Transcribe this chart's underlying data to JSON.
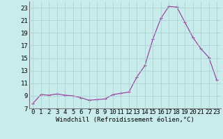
{
  "xlabel": "Windchill (Refroidissement éolien,°C)",
  "hours": [
    0,
    1,
    2,
    3,
    4,
    5,
    6,
    7,
    8,
    9,
    10,
    11,
    12,
    13,
    14,
    15,
    16,
    17,
    18,
    19,
    20,
    21,
    22,
    23
  ],
  "values": [
    7.8,
    9.2,
    9.1,
    9.3,
    9.1,
    9.0,
    8.7,
    8.3,
    8.4,
    8.5,
    9.2,
    9.4,
    9.6,
    12.0,
    13.8,
    18.0,
    21.3,
    23.2,
    23.1,
    20.7,
    18.3,
    16.5,
    15.1,
    11.5
  ],
  "line_color": "#993399",
  "marker": "+",
  "bg_color": "#c8ecec",
  "grid_color": "#aacccc",
  "ylim": [
    7,
    24
  ],
  "yticks": [
    7,
    9,
    11,
    13,
    15,
    17,
    19,
    21,
    23
  ],
  "xlim": [
    -0.5,
    23.5
  ],
  "xticks": [
    0,
    1,
    2,
    3,
    4,
    5,
    6,
    7,
    8,
    9,
    10,
    11,
    12,
    13,
    14,
    15,
    16,
    17,
    18,
    19,
    20,
    21,
    22,
    23
  ],
  "tick_fontsize": 6.5,
  "xlabel_fontsize": 6.5
}
